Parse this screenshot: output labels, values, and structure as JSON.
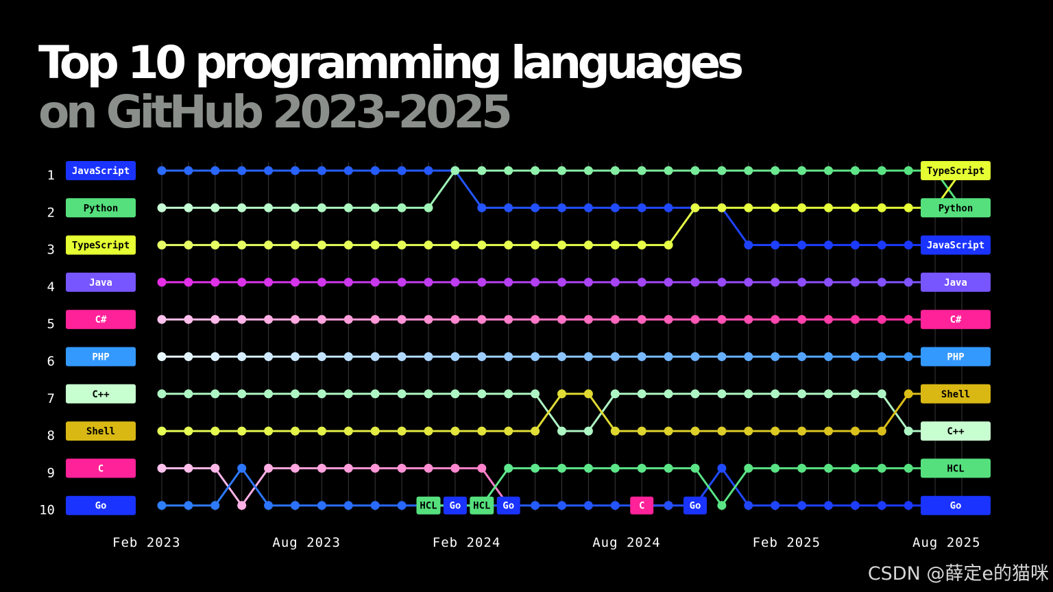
{
  "title": {
    "line1": "Top 10 programming languages",
    "line2": "on GitHub 2023-2025"
  },
  "watermark": "CSDN @薛定e的猫咪",
  "chart_data": {
    "type": "line",
    "subtype": "bump",
    "title": "Top 10 programming languages on GitHub 2023-2025",
    "y_axis": {
      "label": "",
      "ticks": [
        1,
        2,
        3,
        4,
        5,
        6,
        7,
        8,
        9,
        10
      ],
      "reversed": true
    },
    "x_axis": {
      "label": "",
      "tick_labels": [
        "Feb 2023",
        "Aug 2023",
        "Feb 2024",
        "Aug 2024",
        "Feb 2025",
        "Aug 2025"
      ],
      "tick_indices": [
        0,
        6,
        12,
        18,
        24,
        30
      ]
    },
    "x": [
      "2023-02",
      "2023-03",
      "2023-04",
      "2023-05",
      "2023-06",
      "2023-07",
      "2023-08",
      "2023-09",
      "2023-10",
      "2023-11",
      "2023-12",
      "2024-01",
      "2024-02",
      "2024-03",
      "2024-04",
      "2024-05",
      "2024-06",
      "2024-07",
      "2024-08",
      "2024-09",
      "2024-10",
      "2024-11",
      "2024-12",
      "2025-01",
      "2025-02",
      "2025-03",
      "2025-04",
      "2025-05",
      "2025-06",
      "2025-07",
      "2025-08"
    ],
    "grid": true,
    "start_labels": [
      "JavaScript",
      "Python",
      "TypeScript",
      "Java",
      "C#",
      "PHP",
      "C++",
      "Shell",
      "C",
      "Go"
    ],
    "end_labels": [
      "TypeScript",
      "Python",
      "JavaScript",
      "Java",
      "C#",
      "PHP",
      "Shell",
      "C++",
      "HCL",
      "Go"
    ],
    "inline_labels": [
      {
        "text": "HCL",
        "series": "HCL",
        "index": 10
      },
      {
        "text": "Go",
        "series": "Go",
        "index": 11
      },
      {
        "text": "HCL",
        "series": "HCL",
        "index": 12
      },
      {
        "text": "Go",
        "series": "Go",
        "index": 13
      },
      {
        "text": "C",
        "series": "C",
        "index": 18
      },
      {
        "text": "Go",
        "series": "Go",
        "index": 20
      }
    ],
    "series": [
      {
        "name": "JavaScript",
        "color_start": "#2b6bff",
        "color_end": "#1a33ff",
        "tag_bg": "#1a33ff",
        "tag_fg": "#ffffff",
        "start": 0,
        "ranks": [
          1,
          1,
          1,
          1,
          1,
          1,
          1,
          1,
          1,
          1,
          1,
          1,
          2,
          2,
          2,
          2,
          2,
          2,
          2,
          2,
          2,
          2,
          3,
          3,
          3,
          3,
          3,
          3,
          3,
          3,
          3
        ]
      },
      {
        "name": "Python",
        "color_start": "#c8ffd6",
        "color_end": "#4ee07a",
        "tag_bg": "#55e07d",
        "tag_fg": "#000000",
        "start": 0,
        "ranks": [
          2,
          2,
          2,
          2,
          2,
          2,
          2,
          2,
          2,
          2,
          2,
          1,
          1,
          1,
          1,
          1,
          1,
          1,
          1,
          1,
          1,
          1,
          1,
          1,
          1,
          1,
          1,
          1,
          1,
          1,
          2
        ]
      },
      {
        "name": "TypeScript",
        "color_start": "#e6ff66",
        "color_end": "#e6ff33",
        "tag_bg": "#e6ff33",
        "tag_fg": "#000000",
        "start": 0,
        "ranks": [
          3,
          3,
          3,
          3,
          3,
          3,
          3,
          3,
          3,
          3,
          3,
          3,
          3,
          3,
          3,
          3,
          3,
          3,
          3,
          3,
          2,
          2,
          2,
          2,
          2,
          2,
          2,
          2,
          2,
          2,
          1
        ]
      },
      {
        "name": "Java",
        "color_start": "#e62ee6",
        "color_end": "#7755ff",
        "tag_bg": "#7755ff",
        "tag_fg": "#ffffff",
        "start": 0,
        "ranks": [
          4,
          4,
          4,
          4,
          4,
          4,
          4,
          4,
          4,
          4,
          4,
          4,
          4,
          4,
          4,
          4,
          4,
          4,
          4,
          4,
          4,
          4,
          4,
          4,
          4,
          4,
          4,
          4,
          4,
          4,
          4
        ]
      },
      {
        "name": "C#",
        "color_start": "#ffc2ee",
        "color_end": "#ff2299",
        "tag_bg": "#ff2299",
        "tag_fg": "#ffffff",
        "start": 0,
        "ranks": [
          5,
          5,
          5,
          5,
          5,
          5,
          5,
          5,
          5,
          5,
          5,
          5,
          5,
          5,
          5,
          5,
          5,
          5,
          5,
          5,
          5,
          5,
          5,
          5,
          5,
          5,
          5,
          5,
          5,
          5,
          5
        ]
      },
      {
        "name": "PHP",
        "color_start": "#e8f8ff",
        "color_end": "#2f8fff",
        "tag_bg": "#3399ff",
        "tag_fg": "#ffffff",
        "start": 0,
        "ranks": [
          6,
          6,
          6,
          6,
          6,
          6,
          6,
          6,
          6,
          6,
          6,
          6,
          6,
          6,
          6,
          6,
          6,
          6,
          6,
          6,
          6,
          6,
          6,
          6,
          6,
          6,
          6,
          6,
          6,
          6,
          6
        ]
      },
      {
        "name": "C++",
        "color_start": "#aef5c4",
        "color_end": "#aef5c4",
        "tag_bg": "#c8ffd0",
        "tag_fg": "#000000",
        "start": 0,
        "ranks": [
          7,
          7,
          7,
          7,
          7,
          7,
          7,
          7,
          7,
          7,
          7,
          7,
          7,
          7,
          7,
          8,
          8,
          7,
          7,
          7,
          7,
          7,
          7,
          7,
          7,
          7,
          7,
          7,
          8,
          8,
          8
        ]
      },
      {
        "name": "Shell",
        "color_start": "#e6ff55",
        "color_end": "#d9b814",
        "tag_bg": "#d9b814",
        "tag_fg": "#000000",
        "start": 0,
        "ranks": [
          8,
          8,
          8,
          8,
          8,
          8,
          8,
          8,
          8,
          8,
          8,
          8,
          8,
          8,
          8,
          7,
          7,
          8,
          8,
          8,
          8,
          8,
          8,
          8,
          8,
          8,
          8,
          8,
          7,
          7,
          7
        ]
      },
      {
        "name": "C",
        "color_start": "#ffc2ee",
        "color_end": "#ff2299",
        "tag_bg": "#ff2299",
        "tag_fg": "#ffffff",
        "start": 0,
        "ranks": [
          9,
          9,
          9,
          10,
          9,
          9,
          9,
          9,
          9,
          9,
          9,
          9,
          9,
          10,
          null,
          null,
          null,
          null,
          10,
          10
        ]
      },
      {
        "name": "Go",
        "color_start": "#2f7fff",
        "color_end": "#1a33ff",
        "tag_bg": "#1a33ff",
        "tag_fg": "#ffffff",
        "start": 0,
        "ranks": [
          10,
          10,
          10,
          9,
          10,
          10,
          10,
          10,
          10,
          10,
          10,
          10,
          10,
          10,
          10,
          10,
          10,
          10,
          10,
          10,
          10,
          9,
          10,
          10,
          10,
          10,
          10,
          10,
          10,
          10,
          10
        ]
      },
      {
        "name": "HCL",
        "color_start": "#66ee99",
        "color_end": "#55e07d",
        "tag_bg": "#55e07d",
        "tag_fg": "#000000",
        "start": 10,
        "ranks": [
          10,
          10,
          10,
          9,
          9,
          9,
          9,
          9,
          9,
          9,
          9,
          10,
          9,
          9,
          9,
          9,
          9,
          9,
          9,
          9,
          9
        ]
      }
    ]
  }
}
